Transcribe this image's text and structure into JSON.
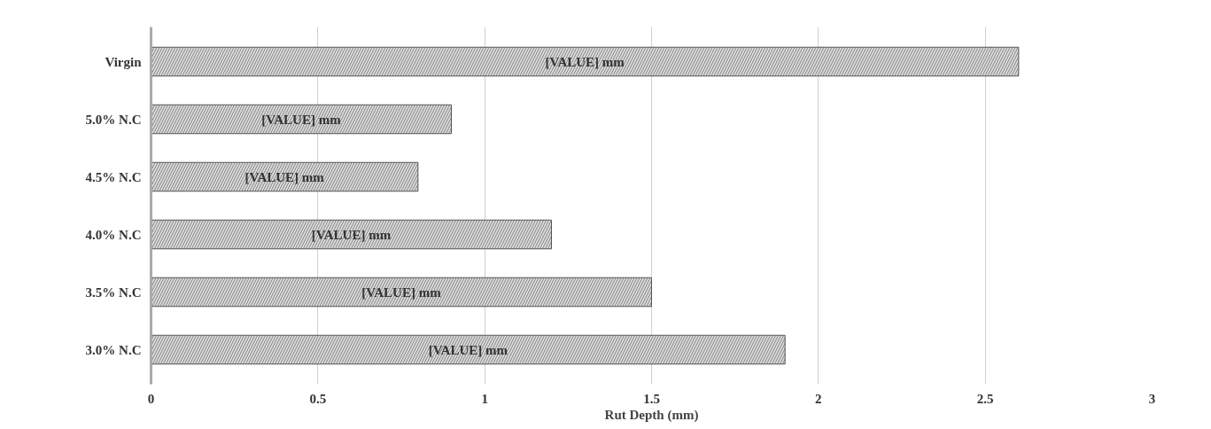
{
  "chart_data": {
    "type": "bar",
    "orientation": "horizontal",
    "xlabel": "Rut Depth (mm)",
    "categories": [
      "Virgin",
      "5.0% N.C",
      "4.5% N.C",
      "4.0% N.C",
      "3.5% N.C",
      "3.0% N.C"
    ],
    "values": [
      2.6,
      0.9,
      0.8,
      1.2,
      1.5,
      1.9
    ],
    "value_labels": [
      "[VALUE] mm",
      "[VALUE] mm",
      "[VALUE] mm",
      "[VALUE] mm",
      "[VALUE] mm",
      "[VALUE] mm"
    ],
    "color": "#d9d9d9",
    "xlim": [
      0,
      3
    ],
    "xticks": [
      0,
      0.5,
      1,
      1.5,
      2,
      2.5,
      3
    ],
    "grid": "x"
  }
}
